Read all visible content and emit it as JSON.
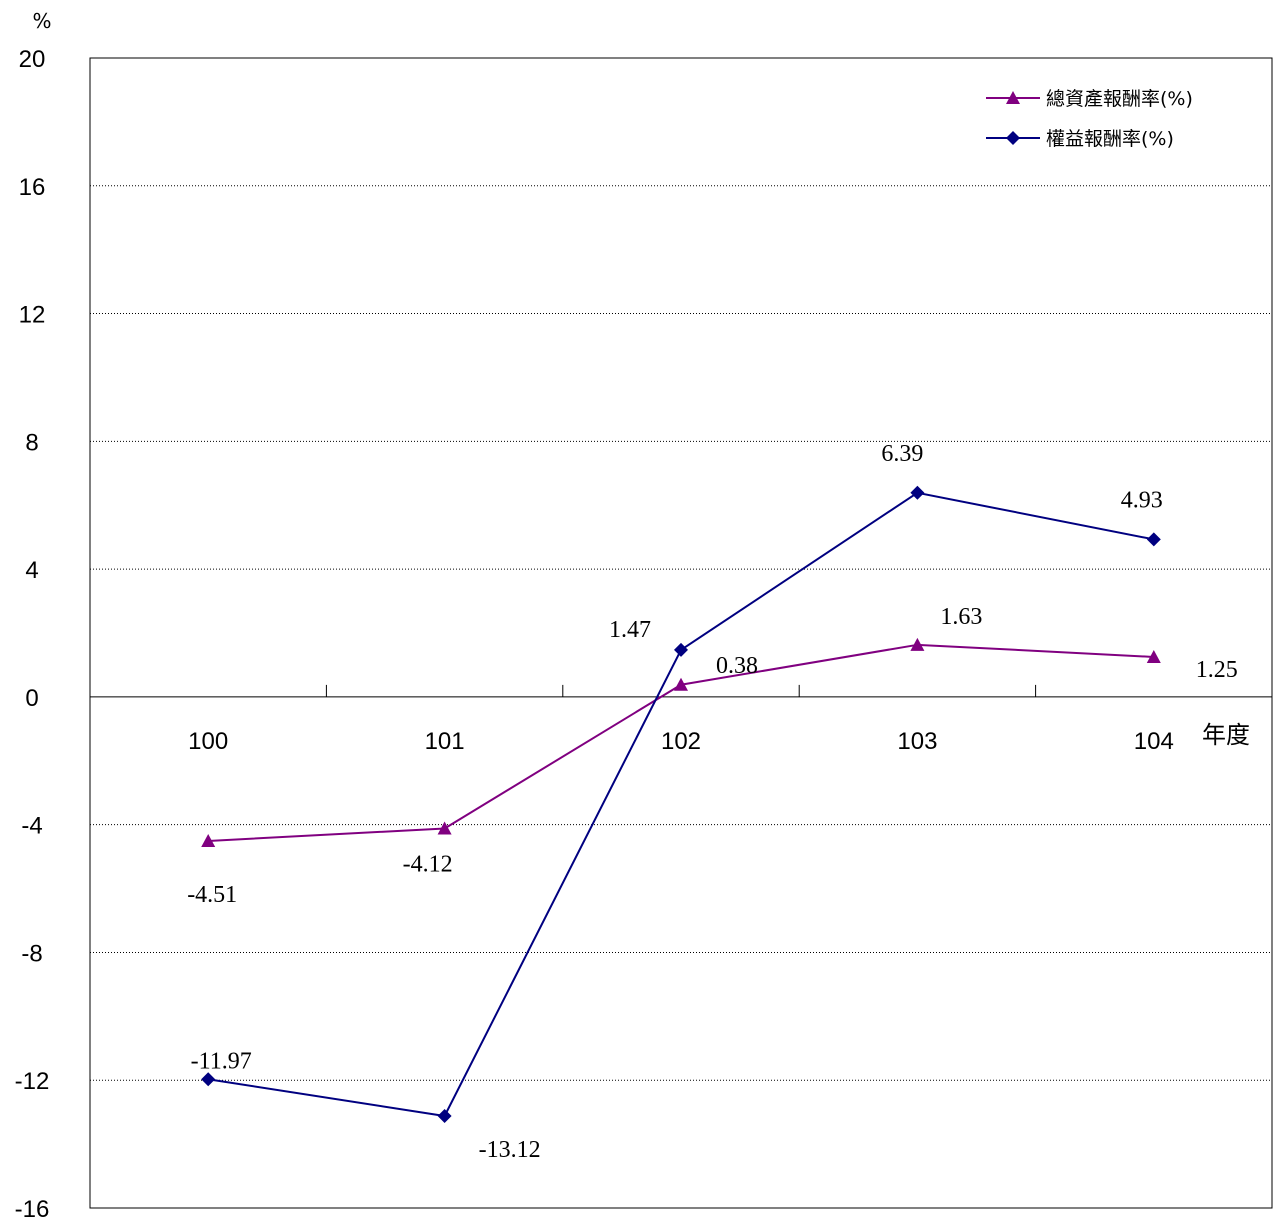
{
  "chart_data": {
    "type": "line",
    "title": "",
    "ylabel": "%",
    "xlabel": "年度",
    "categories": [
      "100",
      "101",
      "102",
      "103",
      "104"
    ],
    "ylim": [
      -16,
      20
    ],
    "yticks": [
      20,
      16,
      12,
      8,
      4,
      0,
      -4,
      -8,
      -12,
      -16
    ],
    "grid": "horizontal-dotted",
    "legend_position": "top-right",
    "series": [
      {
        "name": "總資產報酬率(%)",
        "color": "#800080",
        "marker": "triangle",
        "values": [
          -4.51,
          -4.12,
          0.38,
          1.63,
          1.25
        ],
        "labels": [
          "-4.51",
          "-4.12",
          "0.38",
          "1.63",
          "1.25"
        ]
      },
      {
        "name": "權益報酬率(%)",
        "color": "#000080",
        "marker": "diamond",
        "values": [
          -11.97,
          -13.12,
          1.47,
          6.39,
          4.93
        ],
        "labels": [
          "-11.97",
          "-13.12",
          "1.47",
          "6.39",
          "4.93"
        ]
      }
    ]
  }
}
